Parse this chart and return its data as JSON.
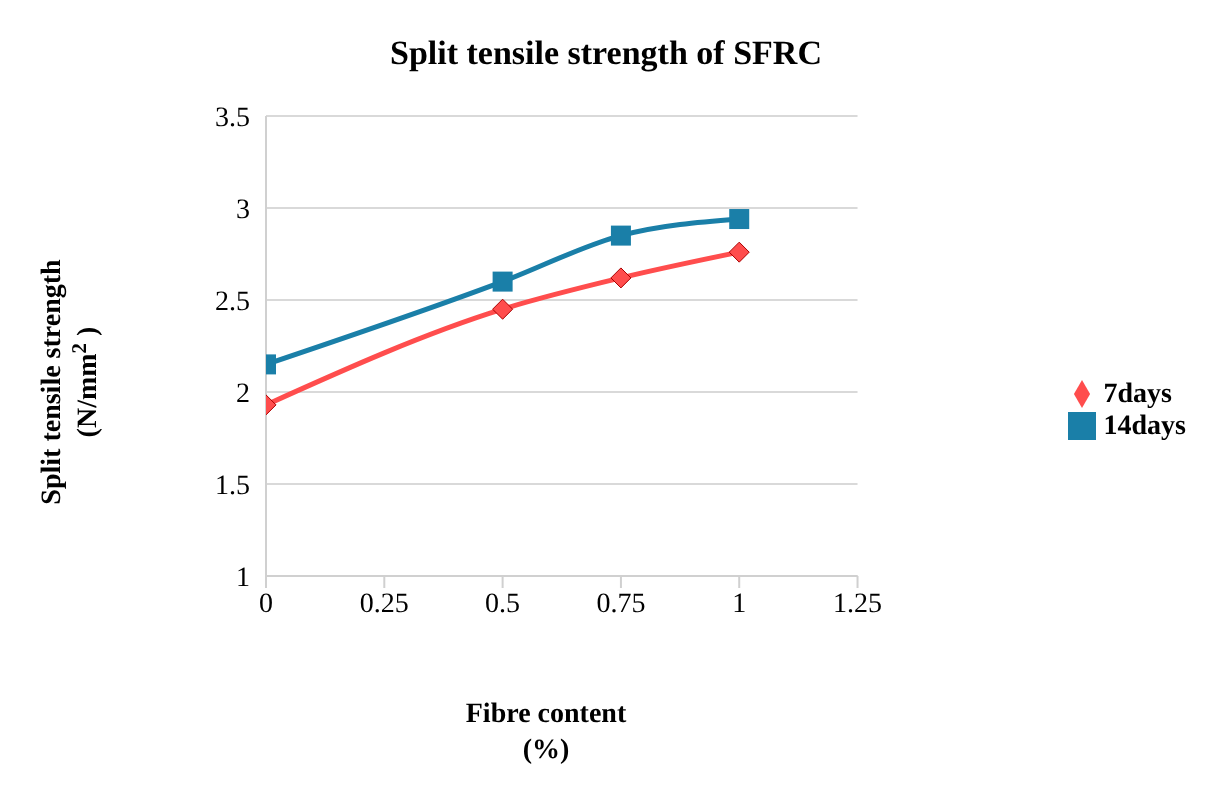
{
  "chart_data": {
    "type": "line",
    "title": "Split  tensile strength of SFRC",
    "xlabel": "Fibre content\n(%)",
    "ylabel": "Split  tensile strength\n(N/mm$^{2}$ )",
    "x": [
      0,
      0.5,
      0.75,
      1
    ],
    "series": [
      {
        "name": "7days",
        "color": "#ff4d4d",
        "marker": "diamond",
        "values": [
          1.93,
          2.45,
          2.62,
          2.76
        ]
      },
      {
        "name": "14days",
        "color": "#1a7fa8",
        "marker": "square",
        "values": [
          2.15,
          2.6,
          2.85,
          2.94
        ]
      }
    ],
    "xlim": [
      0,
      1.25
    ],
    "xticks": [
      0,
      0.25,
      0.5,
      0.75,
      1,
      1.25
    ],
    "ylim": [
      1,
      3.5
    ],
    "yticks": [
      1,
      1.5,
      2,
      2.5,
      3,
      3.5
    ],
    "grid": "y",
    "legend": "right"
  }
}
